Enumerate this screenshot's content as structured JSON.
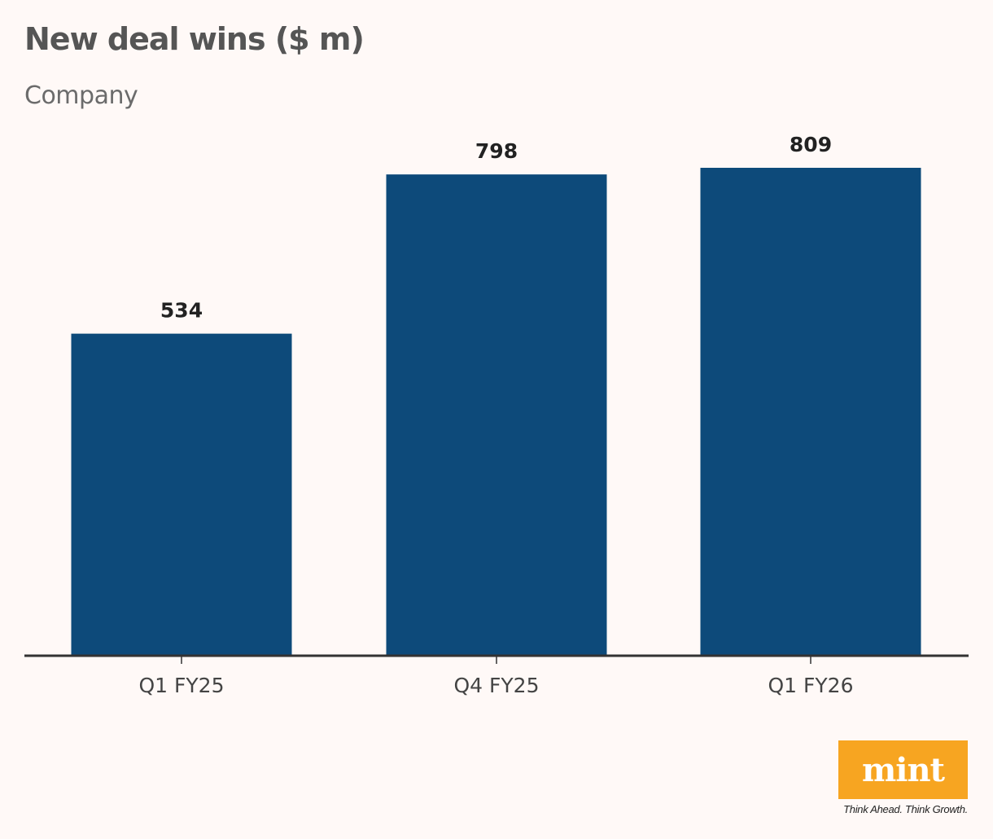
{
  "chart_data": {
    "type": "bar",
    "title": "New deal wins ($ m)",
    "subtitle": "Company",
    "categories": [
      "Q1 FY25",
      "Q4 FY25",
      "Q1 FY26"
    ],
    "values": [
      534,
      798,
      809
    ],
    "ylim": [
      0,
      809
    ],
    "grid": false,
    "bar_color": "#0d4a7a",
    "axis_color": "#333333"
  },
  "branding": {
    "logo": "mint",
    "tagline": "Think Ahead. Think Growth.",
    "logo_color": "#f7a521"
  }
}
